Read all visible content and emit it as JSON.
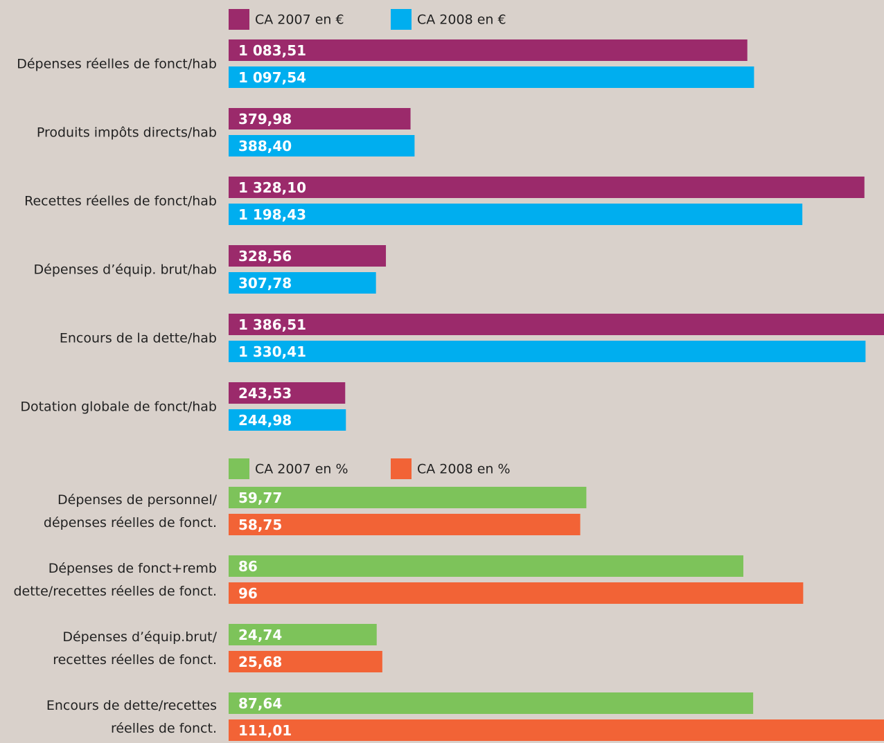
{
  "chart_data": [
    {
      "type": "barh",
      "categories": [
        "Dépenses réelles de fonct/hab",
        "Produits impôts directs/hab",
        "Recettes réelles de fonct/hab",
        "Dépenses d’équip. brut/hab",
        "Encours de la dette/hab",
        "Dotation globale de fonct/hab"
      ],
      "series": [
        {
          "name": "CA 2007 en €",
          "color": "#9b2a6b",
          "values": [
            1083.51,
            379.98,
            1328.1,
            328.56,
            1386.51,
            243.53
          ],
          "value_labels": [
            "1 083,51",
            "379,98",
            "1 328,10",
            "328,56",
            "1 386,51",
            "243,53"
          ]
        },
        {
          "name": "CA 2008 en €",
          "color": "#00aeef",
          "values": [
            1097.54,
            388.4,
            1198.43,
            307.78,
            1330.41,
            244.98
          ],
          "value_labels": [
            "1 097,54",
            "388,40",
            "1 198,43",
            "307,78",
            "1 330,41",
            "244,98"
          ]
        }
      ],
      "xlim": [
        0,
        1369
      ]
    },
    {
      "type": "barh",
      "categories": [
        [
          "Dépenses de personnel/",
          "dépenses réelles de fonct."
        ],
        [
          "Dépenses de fonct+remb",
          "dette/recettes réelles de fonct."
        ],
        [
          "Dépenses d’équip.brut/",
          "recettes réelles de fonct."
        ],
        [
          "Encours de dette/recettes",
          "réelles de fonct."
        ]
      ],
      "series": [
        {
          "name": "CA 2007 en %",
          "color": "#7dc35a",
          "values": [
            59.77,
            86,
            24.74,
            87.64
          ],
          "value_labels": [
            "59,77",
            "86",
            "24,74",
            "87,64"
          ]
        },
        {
          "name": "CA 2008 en %",
          "color": "#f26336",
          "values": [
            58.75,
            96,
            25.68,
            111.01
          ],
          "value_labels": [
            "58,75",
            "96",
            "25,68",
            "111,01"
          ]
        }
      ],
      "xlim": [
        0,
        109.5
      ]
    }
  ]
}
